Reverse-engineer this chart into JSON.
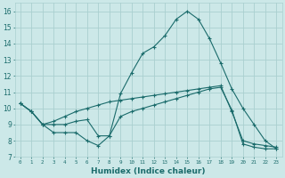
{
  "xlabel": "Humidex (Indice chaleur)",
  "background_color": "#cce8e8",
  "grid_color": "#aad0d0",
  "line_color": "#1a6b6b",
  "series": [
    {
      "x": [
        0,
        1,
        2,
        3,
        4,
        5,
        6,
        7,
        8,
        9,
        10,
        11,
        12,
        13,
        14,
        15,
        16,
        17,
        18,
        19,
        20,
        21,
        22,
        23
      ],
      "y": [
        10.3,
        9.8,
        9.0,
        8.5,
        8.5,
        8.5,
        8.0,
        7.7,
        8.3,
        10.9,
        12.2,
        13.4,
        13.8,
        14.5,
        15.5,
        16.0,
        15.5,
        14.3,
        12.8,
        11.2,
        10.0,
        9.0,
        8.0,
        7.5
      ]
    },
    {
      "x": [
        0,
        1,
        2,
        3,
        4,
        5,
        6,
        7,
        8,
        9,
        10,
        11,
        12,
        13,
        14,
        15,
        16,
        17,
        18,
        19,
        20,
        21,
        22,
        23
      ],
      "y": [
        10.3,
        9.8,
        9.0,
        9.0,
        9.0,
        9.2,
        9.3,
        8.3,
        8.3,
        9.5,
        9.8,
        10.0,
        10.2,
        10.4,
        10.6,
        10.8,
        11.0,
        11.2,
        11.3,
        9.9,
        7.8,
        7.6,
        7.5,
        7.5
      ]
    },
    {
      "x": [
        0,
        1,
        2,
        3,
        4,
        5,
        6,
        7,
        8,
        9,
        10,
        11,
        12,
        13,
        14,
        15,
        16,
        17,
        18,
        19,
        20,
        21,
        22,
        23
      ],
      "y": [
        10.3,
        9.8,
        9.0,
        9.2,
        9.5,
        9.8,
        10.0,
        10.2,
        10.4,
        10.5,
        10.6,
        10.7,
        10.8,
        10.9,
        11.0,
        11.1,
        11.2,
        11.3,
        11.4,
        9.8,
        8.0,
        7.8,
        7.7,
        7.6
      ]
    }
  ],
  "xlim": [
    -0.5,
    23.5
  ],
  "ylim": [
    7,
    16.5
  ],
  "yticks": [
    7,
    8,
    9,
    10,
    11,
    12,
    13,
    14,
    15,
    16
  ],
  "xticks": [
    0,
    1,
    2,
    3,
    4,
    5,
    6,
    7,
    8,
    9,
    10,
    11,
    12,
    13,
    14,
    15,
    16,
    17,
    18,
    19,
    20,
    21,
    22,
    23
  ],
  "xtick_labels": [
    "0",
    "1",
    "2",
    "3",
    "4",
    "5",
    "6",
    "7",
    "8",
    "9",
    "10",
    "11",
    "12",
    "13",
    "14",
    "15",
    "16",
    "17",
    "18",
    "19",
    "20",
    "21",
    "22",
    "23"
  ]
}
